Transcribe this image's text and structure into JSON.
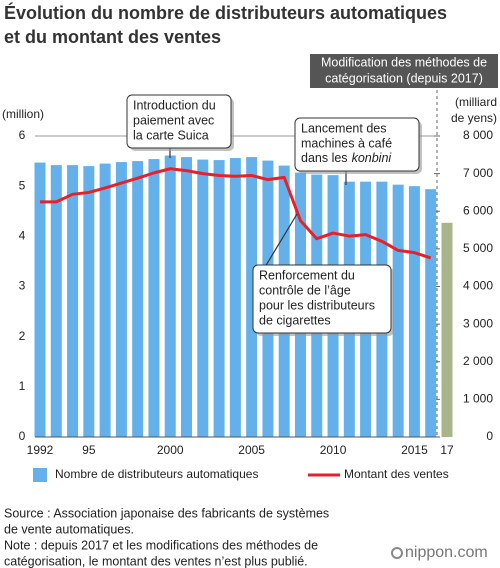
{
  "chart_data": {
    "type": "bar_line",
    "title": [
      "Évolution du nombre de distributeurs automatiques",
      "et du montant des ventes"
    ],
    "header_note": [
      "Modification des méthodes de",
      "catégorisation (depuis 2017)"
    ],
    "ylabel": "(million)",
    "y2label": [
      "(milliard",
      "de yens)"
    ],
    "categories": [
      "1992",
      null,
      null,
      "95",
      null,
      null,
      null,
      null,
      "2000",
      null,
      null,
      null,
      null,
      "2005",
      null,
      null,
      null,
      null,
      "2010",
      null,
      null,
      null,
      null,
      "2015",
      null,
      "17"
    ],
    "ylim": [
      0,
      6
    ],
    "yticks": [
      0,
      1,
      2,
      3,
      4,
      5,
      6
    ],
    "y2lim": [
      0,
      8000
    ],
    "y2ticks": [
      0,
      {
        "value": 1000,
        "label": "1 000"
      },
      {
        "value": 2000,
        "label": "2 000"
      },
      {
        "value": 3000,
        "label": "3 000"
      },
      {
        "value": 4000,
        "label": "4 000"
      },
      {
        "value": 5000,
        "label": "5 000"
      },
      {
        "value": 6000,
        "label": "6 000"
      },
      {
        "value": 7000,
        "label": "7 000"
      },
      {
        "value": 8000,
        "label": "8 000"
      }
    ],
    "series": [
      {
        "name": "Nombre de distributeurs automatiques",
        "kind": "bar",
        "axis": "y",
        "color": "#64b0ea",
        "colors": [
          "#64b0ea",
          "#64b0ea",
          "#64b0ea",
          "#64b0ea",
          "#64b0ea",
          "#64b0ea",
          "#64b0ea",
          "#64b0ea",
          "#64b0ea",
          "#64b0ea",
          "#64b0ea",
          "#64b0ea",
          "#64b0ea",
          "#64b0ea",
          "#64b0ea",
          "#64b0ea",
          "#64b0ea",
          "#64b0ea",
          "#64b0ea",
          "#64b0ea",
          "#64b0ea",
          "#64b0ea",
          "#64b0ea",
          "#64b0ea",
          "#64b0ea",
          "#a9b48a"
        ],
        "values": [
          5.47,
          5.42,
          5.42,
          5.4,
          5.45,
          5.48,
          5.5,
          5.54,
          5.61,
          5.58,
          5.53,
          5.52,
          5.56,
          5.58,
          5.51,
          5.41,
          5.27,
          5.23,
          5.22,
          5.09,
          5.09,
          5.09,
          5.03,
          5.0,
          4.94,
          4.27
        ]
      },
      {
        "name": "Montant des ventes",
        "kind": "line",
        "axis": "y2",
        "color": "#e8202a",
        "values": [
          6250,
          6250,
          6450,
          6500,
          6620,
          6750,
          6880,
          7020,
          7130,
          7080,
          7000,
          6950,
          6930,
          6950,
          6840,
          6900,
          5750,
          5270,
          5420,
          5340,
          5380,
          5200,
          4960,
          4900,
          4760,
          null
        ]
      }
    ],
    "annotations": [
      {
        "lines": [
          "Introduction du",
          "paiement avec",
          "la carte Suica"
        ]
      },
      {
        "lines": [
          "Lancement des",
          "machines à café",
          {
            "text": "dans les",
            "italic": "konbini"
          }
        ]
      },
      {
        "lines": [
          "Renforcement du",
          "contrôle de l’âge",
          "pour les distributeurs",
          "de cigarettes"
        ]
      }
    ],
    "source": [
      "Source : Association japonaise des fabricants de systèmes",
      "de vente automatiques."
    ],
    "note": [
      "Note : depuis 2017 et les modifications des méthodes de",
      "catégorisation, le montant des ventes n’est plus publié."
    ],
    "logo": "nippon.com"
  }
}
